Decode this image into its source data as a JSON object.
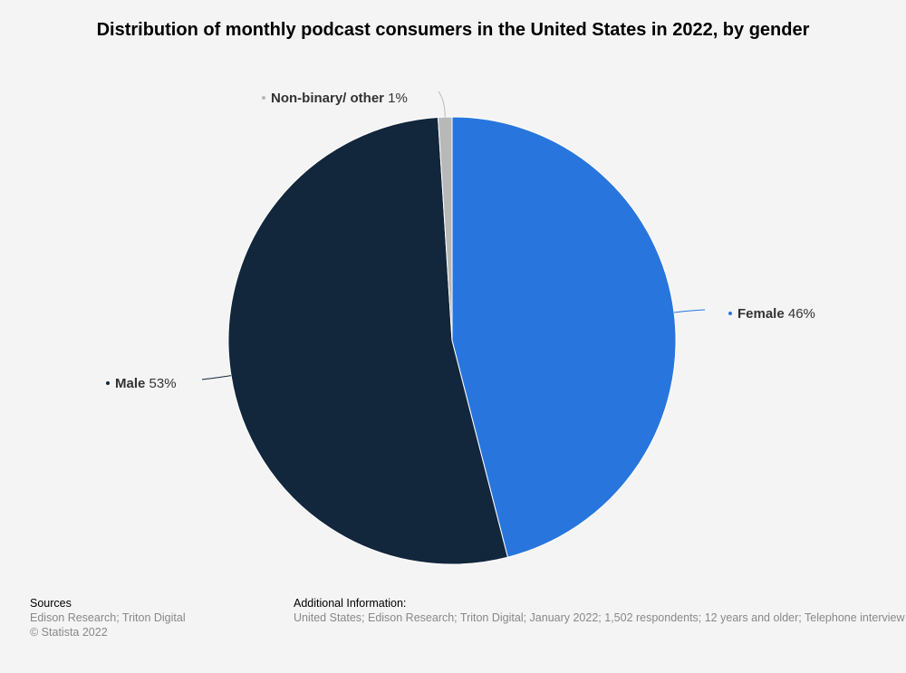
{
  "chart_data": {
    "type": "pie",
    "title": "Distribution of monthly podcast consumers in the United States in 2022, by gender",
    "unit": "%",
    "slices": [
      {
        "name": "Female",
        "value": 46,
        "label_value": "46%",
        "color": "#2876dd"
      },
      {
        "name": "Male",
        "value": 53,
        "label_value": "53%",
        "color": "#12263c"
      },
      {
        "name": "Non-binary/ other",
        "value": 1,
        "label_value": "1%",
        "color": "#b8b8b8"
      }
    ]
  },
  "footer": {
    "sources_heading": "Sources",
    "sources_text": "Edison Research; Triton Digital",
    "copyright": "© Statista 2022",
    "additional_heading": "Additional Information:",
    "additional_text": "United States; Edison Research; Triton Digital; January 2022; 1,502 respondents; 12 years and older; Telephone interview"
  }
}
